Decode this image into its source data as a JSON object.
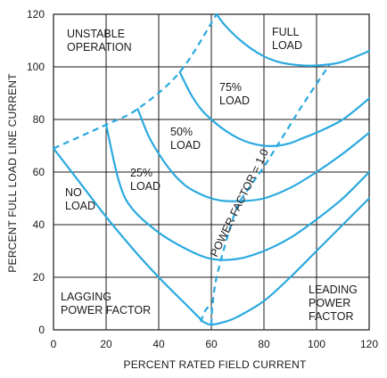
{
  "chart_data": {
    "type": "line",
    "xlabel": "PERCENT RATED FIELD CURRENT",
    "ylabel": "PERCENT FULL LOAD LINE CURRENT",
    "xlim": [
      0,
      120
    ],
    "ylim": [
      0,
      120
    ],
    "x_ticks": [
      "0",
      "20",
      "40",
      "60",
      "80",
      "100",
      "120"
    ],
    "y_ticks": [
      "0",
      "20",
      "40",
      "60",
      "80",
      "100",
      "120"
    ],
    "grid": true,
    "line_color": "#2aa9df",
    "series": [
      {
        "id": "no-load",
        "label": [
          "NO",
          "LOAD"
        ],
        "x": [
          0,
          10,
          20,
          30,
          40,
          50,
          55,
          57,
          60,
          65,
          70,
          80,
          90,
          100,
          110,
          120
        ],
        "y": [
          69,
          56,
          43,
          31,
          20,
          10,
          5,
          3,
          2,
          3,
          5,
          11,
          20,
          30,
          40,
          50
        ]
      },
      {
        "id": "load-25",
        "label": [
          "25%",
          "LOAD"
        ],
        "x": [
          20,
          25,
          30,
          40,
          50,
          60,
          70,
          80,
          90,
          100,
          110,
          120
        ],
        "y": [
          78,
          56,
          46,
          37,
          31,
          27,
          27,
          30,
          35,
          42,
          50,
          60
        ]
      },
      {
        "id": "load-50",
        "label": [
          "50%",
          "LOAD"
        ],
        "x": [
          32,
          36,
          40,
          45,
          50,
          55,
          60,
          65,
          72,
          80,
          90,
          100,
          110,
          120
        ],
        "y": [
          84,
          74,
          67,
          60,
          55,
          52,
          50,
          49,
          49,
          50,
          54,
          60,
          67,
          75
        ]
      },
      {
        "id": "load-75",
        "label": [
          "75%",
          "LOAD"
        ],
        "x": [
          48,
          52,
          56,
          60,
          65,
          70,
          75,
          80,
          85,
          90,
          95,
          100,
          110,
          120
        ],
        "y": [
          98,
          90,
          84,
          80,
          76,
          73,
          71,
          70,
          70,
          71,
          73,
          75,
          80,
          88
        ]
      },
      {
        "id": "full-load",
        "label": [
          "FULL",
          "LOAD"
        ],
        "x": [
          62,
          65,
          70,
          75,
          80,
          85,
          90,
          95,
          100,
          105,
          110,
          120
        ],
        "y": [
          120,
          116,
          111,
          107,
          104,
          102,
          101,
          100.5,
          100.5,
          101,
          102,
          106
        ]
      }
    ],
    "boundary_lines": [
      {
        "id": "stability-limit",
        "style": "dashed",
        "x": [
          0,
          20,
          32,
          48,
          62
        ],
        "y": [
          69,
          78,
          84,
          98,
          120
        ]
      },
      {
        "id": "unity-power-factor",
        "style": "dashed",
        "label": "POWER FACTOR = 1.0",
        "x": [
          60,
          60.5,
          62,
          66,
          70,
          75,
          80,
          85,
          90,
          95,
          105
        ],
        "y": [
          2,
          10,
          20,
          35,
          47,
          55,
          62,
          70,
          78,
          86,
          101
        ]
      },
      {
        "id": "no-load-dashed-tail",
        "style": "dashed",
        "x": [
          56,
          57.5,
          60
        ],
        "y": [
          3,
          7,
          10
        ]
      }
    ],
    "annotations": {
      "unstable": [
        "UNSTABLE",
        "OPERATION"
      ],
      "lagging": [
        "LAGGING",
        "POWER FACTOR"
      ],
      "leading": [
        "LEADING",
        "POWER",
        "FACTOR"
      ]
    }
  }
}
